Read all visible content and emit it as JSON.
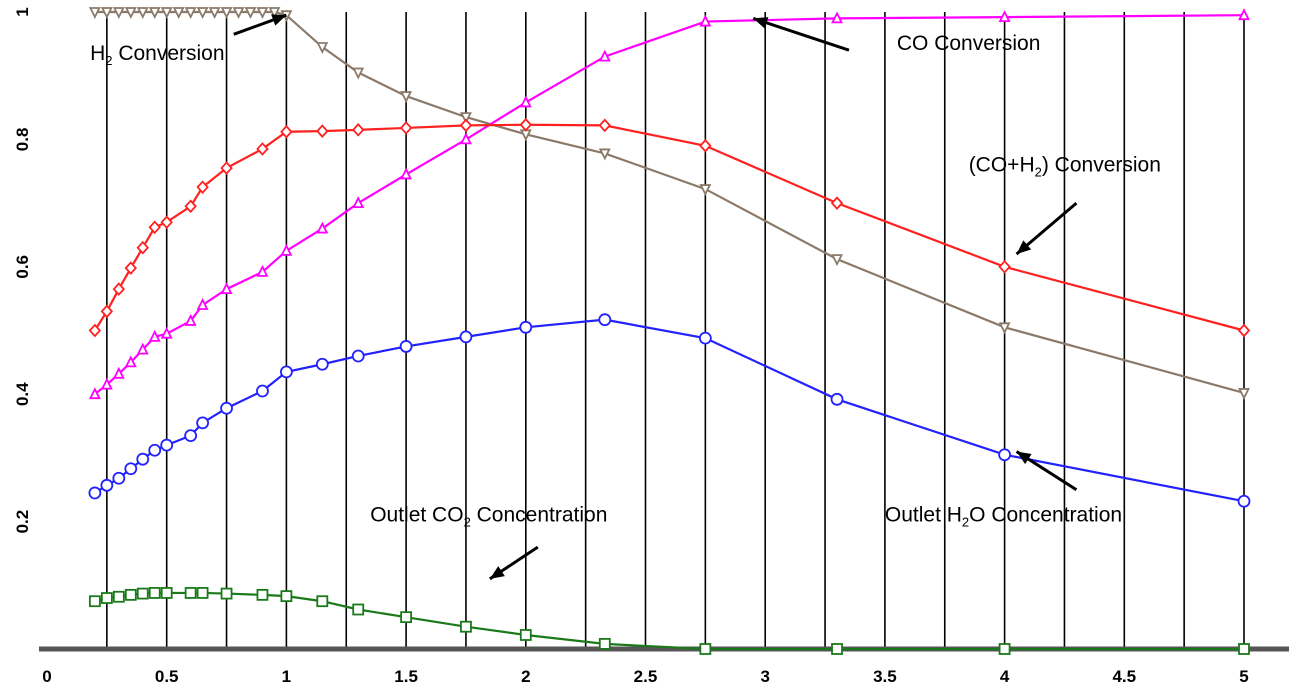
{
  "chart_data": {
    "type": "line",
    "title": "",
    "xlabel": "",
    "ylabel": "",
    "xlim": [
      0,
      5.15
    ],
    "ylim": [
      0,
      1.0
    ],
    "grid": "vertical-lines",
    "legend": "none",
    "x_ticks": [
      "0",
      "0.5",
      "1",
      "1.5",
      "2",
      "2.5",
      "3",
      "3.5",
      "4",
      "4.5",
      "5"
    ],
    "y_ticks": [
      "0.2",
      "0.4",
      "0.6",
      "0.8",
      "1"
    ],
    "series": [
      {
        "color": "#8b7a6a",
        "marker": "triangle-down",
        "x": [
          0.2,
          0.25,
          0.3,
          0.35,
          0.4,
          0.45,
          0.5,
          0.55,
          0.6,
          0.65,
          0.7,
          0.75,
          0.8,
          0.85,
          0.9,
          0.95,
          1.0,
          1.15,
          1.3,
          1.5,
          1.75,
          2.0,
          2.33,
          2.75,
          3.3,
          4.0,
          5.0
        ],
        "y": [
          1.0,
          1.0,
          1.0,
          1.0,
          1.0,
          1.0,
          1.0,
          1.0,
          1.0,
          1.0,
          1.0,
          1.0,
          1.0,
          1.0,
          1.0,
          1.0,
          0.995,
          0.945,
          0.905,
          0.868,
          0.835,
          0.808,
          0.778,
          0.722,
          0.612,
          0.505,
          0.402
        ]
      },
      {
        "color": "#ff00ff",
        "marker": "triangle-up",
        "x": [
          0.2,
          0.25,
          0.3,
          0.35,
          0.4,
          0.45,
          0.5,
          0.6,
          0.65,
          0.75,
          0.9,
          1.0,
          1.15,
          1.3,
          1.5,
          1.75,
          2.0,
          2.33,
          2.75,
          3.3,
          4.0,
          5.0
        ],
        "y": [
          0.4,
          0.415,
          0.432,
          0.45,
          0.47,
          0.49,
          0.495,
          0.515,
          0.54,
          0.565,
          0.592,
          0.625,
          0.66,
          0.7,
          0.745,
          0.8,
          0.858,
          0.93,
          0.985,
          0.99,
          0.992,
          0.995
        ]
      },
      {
        "color": "#ff2020",
        "marker": "diamond",
        "x": [
          0.2,
          0.25,
          0.3,
          0.35,
          0.4,
          0.45,
          0.5,
          0.6,
          0.65,
          0.75,
          0.9,
          1.0,
          1.15,
          1.3,
          1.5,
          1.75,
          2.0,
          2.33,
          2.75,
          3.3,
          4.0,
          5.0
        ],
        "y": [
          0.5,
          0.53,
          0.565,
          0.598,
          0.63,
          0.662,
          0.67,
          0.695,
          0.725,
          0.755,
          0.785,
          0.812,
          0.813,
          0.815,
          0.818,
          0.822,
          0.823,
          0.822,
          0.79,
          0.7,
          0.6,
          0.5
        ]
      },
      {
        "color": "#2222ff",
        "marker": "circle",
        "x": [
          0.2,
          0.25,
          0.3,
          0.35,
          0.4,
          0.45,
          0.5,
          0.6,
          0.65,
          0.75,
          0.9,
          1.0,
          1.15,
          1.3,
          1.5,
          1.75,
          2.0,
          2.33,
          2.75,
          3.3,
          4.0,
          5.0
        ],
        "y": [
          0.245,
          0.257,
          0.268,
          0.283,
          0.298,
          0.312,
          0.32,
          0.335,
          0.355,
          0.378,
          0.405,
          0.435,
          0.447,
          0.46,
          0.475,
          0.49,
          0.505,
          0.517,
          0.488,
          0.392,
          0.305,
          0.232
        ]
      },
      {
        "color": "#1a7a1a",
        "marker": "square",
        "x": [
          0.2,
          0.25,
          0.3,
          0.35,
          0.4,
          0.45,
          0.5,
          0.6,
          0.65,
          0.75,
          0.9,
          1.0,
          1.15,
          1.3,
          1.5,
          1.75,
          2.0,
          2.33,
          2.75,
          3.3,
          4.0,
          5.0
        ],
        "y": [
          0.075,
          0.08,
          0.082,
          0.085,
          0.087,
          0.088,
          0.088,
          0.088,
          0.088,
          0.087,
          0.085,
          0.083,
          0.075,
          0.062,
          0.05,
          0.035,
          0.022,
          0.008,
          0.0,
          0.0,
          0.0,
          0.0
        ]
      }
    ],
    "annotations": [
      {
        "text": "H",
        "sub": "2",
        "text_after": " Conversion",
        "x": 0.18,
        "y": 0.925,
        "arrow_from": [
          0.78,
          0.965
        ],
        "arrow_to": [
          1.0,
          0.995
        ]
      },
      {
        "text": "CO Conversion",
        "text_after": "",
        "sub": "",
        "x": 3.55,
        "y": 0.94,
        "arrow_from": [
          3.35,
          0.94
        ],
        "arrow_to": [
          2.95,
          0.99
        ]
      },
      {
        "text": "(CO+H",
        "sub": "2",
        "text_after": ") Conversion",
        "x": 3.85,
        "y": 0.75,
        "arrow_from": [
          4.3,
          0.7
        ],
        "arrow_to": [
          4.05,
          0.62
        ]
      },
      {
        "text": "Outlet H",
        "sub": "2",
        "text_after": "O Concentration",
        "x": 3.5,
        "y": 0.2,
        "arrow_from": [
          4.3,
          0.25
        ],
        "arrow_to": [
          4.05,
          0.31
        ]
      },
      {
        "text": "Outlet CO",
        "sub": "2",
        "text_after": " Concentration",
        "x": 1.35,
        "y": 0.2,
        "arrow_from": [
          2.05,
          0.16
        ],
        "arrow_to": [
          1.85,
          0.11
        ]
      }
    ]
  }
}
